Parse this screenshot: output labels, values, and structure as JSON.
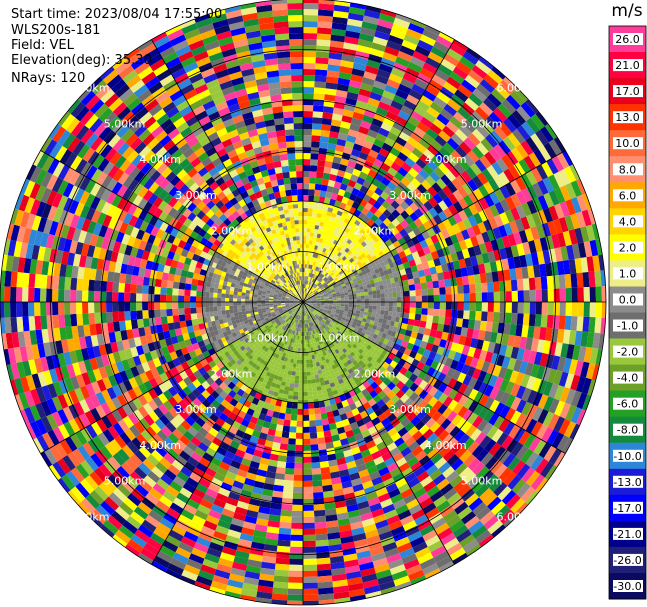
{
  "header": {
    "start_time": "Start time: 2023/08/04 17:55:00",
    "instrument": "WLS200s-181",
    "field": "Field: VEL",
    "elevation": "Elevation(deg): 35.30",
    "nrays": "NRays: 120"
  },
  "chart_data": {
    "type": "heatmap",
    "projection": "polar-ppi",
    "field": "VEL",
    "unit": "m/s",
    "elevation_deg": 35.3,
    "nrays": 120,
    "range_km_max": 6.0,
    "range_rings_km": [
      1.0,
      2.0,
      3.0,
      4.0,
      5.0,
      6.0
    ],
    "range_ring_labels": [
      "1.00km",
      "2.00km",
      "3.00km",
      "4.00km",
      "5.00km",
      "6.00km"
    ],
    "clean_data_extent_km": 2.0,
    "colorbar": {
      "ticks": [
        "26.0",
        "21.0",
        "17.0",
        "13.0",
        "10.0",
        "8.0",
        "6.0",
        "4.0",
        "2.0",
        "1.0",
        "0.0",
        "-1.0",
        "-2.0",
        "-4.0",
        "-6.0",
        "-8.0",
        "-10.0",
        "-13.0",
        "-17.0",
        "-21.0",
        "-26.0",
        "-30.0"
      ],
      "colors": [
        "#ff3c9a",
        "#ff0040",
        "#e8001c",
        "#ff3300",
        "#ff6a3a",
        "#ff8f70",
        "#ffa800",
        "#ffd400",
        "#ffff00",
        "#eeee88",
        "#8c8c8c",
        "#6e6e6e",
        "#9ac83c",
        "#6ca028",
        "#24a024",
        "#148a3c",
        "#2e86d8",
        "#1c1cd8",
        "#0000ff",
        "#00008c",
        "#202078",
        "#0a0a60"
      ]
    },
    "velocity_pattern": {
      "north": "0.0 to 4.0 m/s (yellow)",
      "south": "-2.0 to -4.0 m/s (green)",
      "east_west": "0.0 m/s (gray)"
    }
  }
}
